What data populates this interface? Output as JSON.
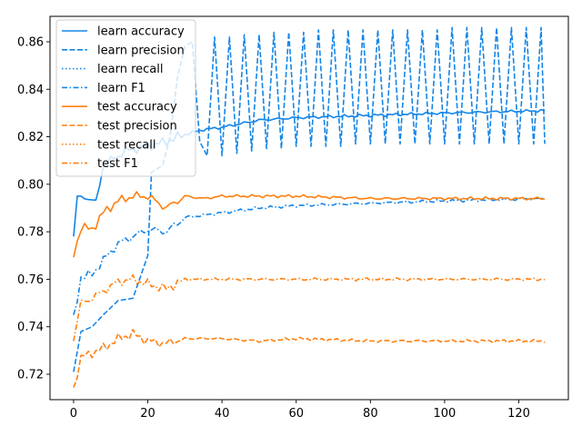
{
  "chart_data": {
    "type": "line",
    "title": "",
    "xlabel": "",
    "ylabel": "",
    "xlim": [
      -6.35,
      133.35
    ],
    "ylim": [
      0.7093,
      0.8707
    ],
    "xticks": [
      0,
      20,
      40,
      60,
      80,
      100,
      120
    ],
    "yticks": [
      0.72,
      0.74,
      0.76,
      0.78,
      0.8,
      0.82,
      0.84,
      0.86
    ],
    "xtick_labels": [
      "0",
      "20",
      "40",
      "60",
      "80",
      "100",
      "120"
    ],
    "ytick_labels": [
      "0.72",
      "0.74",
      "0.76",
      "0.78",
      "0.80",
      "0.82",
      "0.84",
      "0.86"
    ],
    "legend_position": "top-left",
    "grid": false,
    "x_range": [
      0,
      127
    ],
    "series": [
      {
        "name": "learn accuracy",
        "color": "#1f77b4",
        "color_hex": "#1385e8",
        "style": "solid",
        "group": "learn",
        "points": [
          [
            0,
            0.778
          ],
          [
            1,
            0.794
          ],
          [
            3,
            0.795
          ],
          [
            6,
            0.792
          ],
          [
            8,
            0.808
          ],
          [
            10,
            0.81
          ],
          [
            14,
            0.814
          ],
          [
            20,
            0.816
          ],
          [
            25,
            0.818
          ],
          [
            30,
            0.821
          ],
          [
            35,
            0.823
          ],
          [
            40,
            0.824
          ],
          [
            50,
            0.827
          ],
          [
            60,
            0.828
          ],
          [
            80,
            0.829
          ],
          [
            100,
            0.83
          ],
          [
            127,
            0.831
          ]
        ]
      },
      {
        "name": "learn precision",
        "color": "#1385e8",
        "style": "dashed",
        "group": "learn",
        "points": [
          [
            0,
            0.721
          ],
          [
            2,
            0.738
          ],
          [
            5,
            0.74
          ],
          [
            8,
            0.745
          ],
          [
            12,
            0.751
          ],
          [
            16,
            0.752
          ],
          [
            20,
            0.77
          ],
          [
            21,
            0.805
          ],
          [
            24,
            0.808
          ],
          [
            26,
            0.82
          ],
          [
            28,
            0.845
          ],
          [
            30,
            0.858
          ],
          [
            32,
            0.86
          ],
          [
            34,
            0.818
          ],
          [
            36,
            0.812
          ],
          [
            38,
            0.862
          ],
          [
            40,
            0.812
          ],
          [
            42,
            0.862
          ],
          [
            44,
            0.813
          ],
          [
            46,
            0.863
          ],
          [
            48,
            0.814
          ],
          [
            50,
            0.863
          ],
          [
            52,
            0.815
          ],
          [
            54,
            0.864
          ],
          [
            56,
            0.815
          ],
          [
            58,
            0.864
          ],
          [
            60,
            0.816
          ],
          [
            62,
            0.864
          ],
          [
            64,
            0.816
          ],
          [
            66,
            0.865
          ],
          [
            68,
            0.816
          ],
          [
            70,
            0.865
          ],
          [
            72,
            0.816
          ],
          [
            74,
            0.865
          ],
          [
            76,
            0.817
          ],
          [
            78,
            0.865
          ],
          [
            80,
            0.817
          ],
          [
            82,
            0.865
          ],
          [
            84,
            0.817
          ],
          [
            86,
            0.865
          ],
          [
            88,
            0.817
          ],
          [
            90,
            0.865
          ],
          [
            92,
            0.817
          ],
          [
            94,
            0.865
          ],
          [
            96,
            0.817
          ],
          [
            98,
            0.865
          ],
          [
            100,
            0.817
          ],
          [
            102,
            0.866
          ],
          [
            104,
            0.817
          ],
          [
            106,
            0.866
          ],
          [
            108,
            0.817
          ],
          [
            110,
            0.866
          ],
          [
            112,
            0.817
          ],
          [
            114,
            0.866
          ],
          [
            116,
            0.817
          ],
          [
            118,
            0.866
          ],
          [
            120,
            0.817
          ],
          [
            122,
            0.866
          ],
          [
            124,
            0.817
          ],
          [
            126,
            0.866
          ],
          [
            127,
            0.817
          ]
        ]
      },
      {
        "name": "learn recall",
        "color": "#1385e8",
        "style": "dotted",
        "group": "learn",
        "points": []
      },
      {
        "name": "learn F1",
        "color": "#1385e8",
        "style": "dashdot",
        "group": "learn",
        "points": [
          [
            0,
            0.743
          ],
          [
            2,
            0.761
          ],
          [
            5,
            0.762
          ],
          [
            8,
            0.768
          ],
          [
            12,
            0.775
          ],
          [
            16,
            0.778
          ],
          [
            20,
            0.781
          ],
          [
            25,
            0.78
          ],
          [
            30,
            0.786
          ],
          [
            35,
            0.787
          ],
          [
            40,
            0.788
          ],
          [
            50,
            0.79
          ],
          [
            60,
            0.791
          ],
          [
            80,
            0.792
          ],
          [
            100,
            0.793
          ],
          [
            127,
            0.794
          ]
        ]
      },
      {
        "name": "test accuracy",
        "color": "#ff7f0e",
        "style": "solid",
        "group": "test",
        "points": [
          [
            0,
            0.77
          ],
          [
            2,
            0.782
          ],
          [
            5,
            0.781
          ],
          [
            8,
            0.788
          ],
          [
            12,
            0.793
          ],
          [
            16,
            0.795
          ],
          [
            20,
            0.795
          ],
          [
            25,
            0.79
          ],
          [
            30,
            0.795
          ],
          [
            35,
            0.794
          ],
          [
            40,
            0.795
          ],
          [
            50,
            0.795
          ],
          [
            60,
            0.795
          ],
          [
            80,
            0.794
          ],
          [
            100,
            0.794
          ],
          [
            127,
            0.794
          ]
        ]
      },
      {
        "name": "test precision",
        "color": "#ff7f0e",
        "style": "dashed",
        "group": "test",
        "points": [
          [
            0,
            0.714
          ],
          [
            2,
            0.727
          ],
          [
            5,
            0.729
          ],
          [
            8,
            0.731
          ],
          [
            12,
            0.735
          ],
          [
            16,
            0.737
          ],
          [
            20,
            0.734
          ],
          [
            25,
            0.733
          ],
          [
            30,
            0.735
          ],
          [
            35,
            0.735
          ],
          [
            40,
            0.735
          ],
          [
            50,
            0.734
          ],
          [
            60,
            0.735
          ],
          [
            80,
            0.734
          ],
          [
            100,
            0.734
          ],
          [
            127,
            0.734
          ]
        ]
      },
      {
        "name": "test recall",
        "color": "#ff7f0e",
        "style": "dotted",
        "group": "test",
        "points": []
      },
      {
        "name": "test F1",
        "color": "#ff7f0e",
        "style": "dashdot",
        "group": "test",
        "points": [
          [
            0,
            0.735
          ],
          [
            2,
            0.75
          ],
          [
            5,
            0.752
          ],
          [
            8,
            0.755
          ],
          [
            12,
            0.759
          ],
          [
            16,
            0.76
          ],
          [
            20,
            0.758
          ],
          [
            25,
            0.756
          ],
          [
            30,
            0.76
          ],
          [
            35,
            0.76
          ],
          [
            40,
            0.76
          ],
          [
            50,
            0.76
          ],
          [
            60,
            0.76
          ],
          [
            80,
            0.76
          ],
          [
            100,
            0.76
          ],
          [
            127,
            0.76
          ]
        ]
      }
    ]
  }
}
